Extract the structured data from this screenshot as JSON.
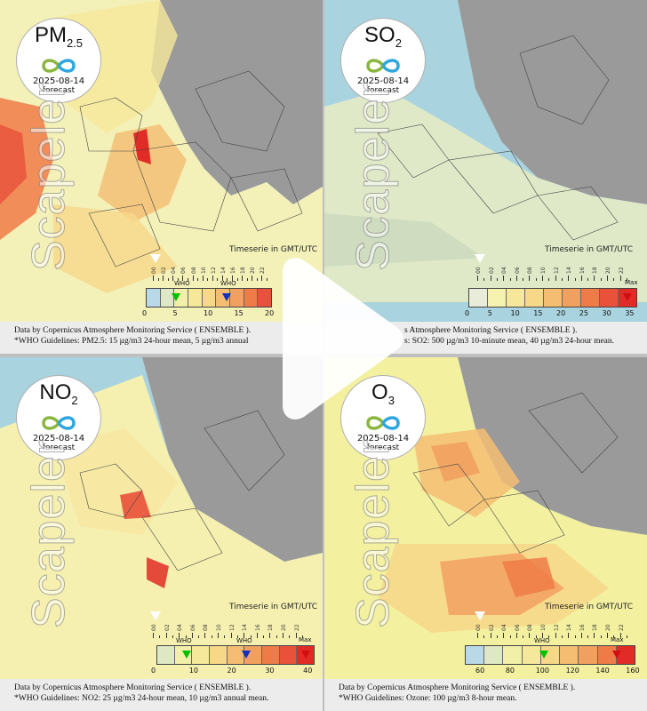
{
  "panels": [
    {
      "pollutant": "PM",
      "sub": "2.5",
      "date": "2025-08-14",
      "forecast": "forecast",
      "timeseries": "Timeserie in GMT/UTC",
      "who": "WHO",
      "who2": "WHO",
      "scale": [
        "0",
        "5",
        "10",
        "15",
        "20"
      ],
      "max": "",
      "colors": [
        "#b9d8e8",
        "#dfe8c6",
        "#f2f0a8",
        "#f6e89a",
        "#f7d889",
        "#f4bd72",
        "#f2a060",
        "#ee7b48",
        "#e9513a"
      ],
      "caption1": "Data by Copernicus Atmosphere Monitoring Service ( ENSEMBLE ).",
      "caption2": "*WHO Guidelines: PM2.5: 15 µg/m3 24-hour mean, 5 µg/m3 annual"
    },
    {
      "pollutant": "SO",
      "sub": "2",
      "date": "2025-08-14",
      "forecast": "forecast",
      "timeseries": "Timeserie in GMT/UTC",
      "scale": [
        "0",
        "5",
        "10",
        "15",
        "20",
        "25",
        "30",
        "35"
      ],
      "max": "Max",
      "colors": [
        "#e8ecd8",
        "#f6f2b0",
        "#f6e89a",
        "#f7d889",
        "#f4bd72",
        "#f2a060",
        "#ee7b48",
        "#e9513a",
        "#e02b26"
      ],
      "caption1": "s Atmosphere Monitoring Service ( ENSEMBLE ).",
      "caption2": "s: SO2: 500 µg/m3 10-minute mean, 40 µg/m3 24-hour mean."
    },
    {
      "pollutant": "NO",
      "sub": "2",
      "date": "2025-08-14",
      "forecast": "forecast",
      "timeseries": "Timeserie in GMT/UTC",
      "who": "WHO",
      "who2": "WHO",
      "scale": [
        "0",
        "10",
        "20",
        "30",
        "40"
      ],
      "max": "Max",
      "colors": [
        "#dfe8c6",
        "#f2f0a8",
        "#f6e89a",
        "#f7d889",
        "#f4bd72",
        "#f2a060",
        "#ee7b48",
        "#e9513a",
        "#e02b26"
      ],
      "caption1": "Data by Copernicus Atmosphere Monitoring Service ( ENSEMBLE ).",
      "caption2": "*WHO Guidelines: NO2: 25 µg/m3 24-hour mean, 10 µg/m3 annual mean."
    },
    {
      "pollutant": "O",
      "sub": "3",
      "date": "2025-08-14",
      "forecast": "forecast",
      "timeseries": "Timeserie in GMT/UTC",
      "who": "WHO",
      "scale": [
        "60",
        "80",
        "100",
        "120",
        "140",
        "160"
      ],
      "max": "Max",
      "colors": [
        "#b9d8e8",
        "#dfe8c6",
        "#f2f0a8",
        "#f6e89a",
        "#f7d889",
        "#f4bd72",
        "#f2a060",
        "#ee7b48",
        "#e02b26"
      ],
      "caption1": "Data by Copernicus Atmosphere Monitoring Service ( ENSEMBLE ).",
      "caption2": "*WHO Guidelines: Ozone: 100 µg/m3 8-hour mean."
    }
  ],
  "watermark": "Scapeler",
  "timeline_hours": [
    "00",
    "02",
    "04",
    "06",
    "08",
    "10",
    "12",
    "14",
    "16",
    "18",
    "20",
    "22"
  ],
  "colors": {
    "sea": "#a9d3df",
    "land_nodata": "#9a9a9a",
    "borders": "#333333"
  }
}
